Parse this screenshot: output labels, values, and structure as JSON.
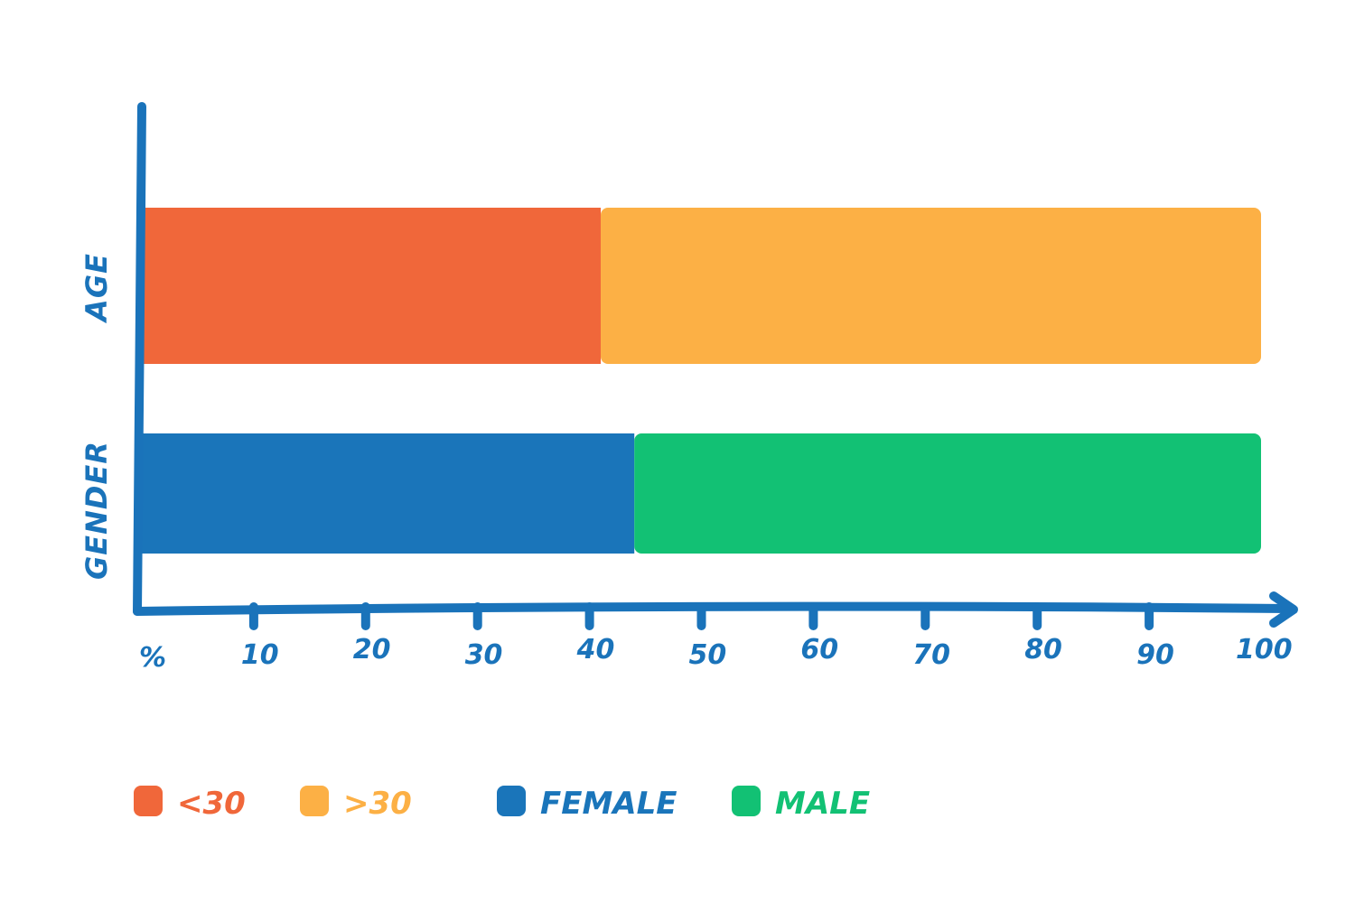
{
  "chart_data": {
    "type": "bar",
    "orientation": "horizontal",
    "stacked": true,
    "categories": [
      "AGE",
      "GENDER"
    ],
    "series": [
      {
        "name": "<30",
        "category": "AGE",
        "value": 41,
        "color": "#f0673a"
      },
      {
        "name": ">30",
        "category": "AGE",
        "value": 59,
        "color": "#fcb045"
      },
      {
        "name": "FEMALE",
        "category": "GENDER",
        "value": 44,
        "color": "#1a75ba"
      },
      {
        "name": "MALE",
        "category": "GENDER",
        "value": 56,
        "color": "#12c174"
      }
    ],
    "x_unit_label": "%",
    "x_ticks": [
      10,
      20,
      30,
      40,
      50,
      60,
      70,
      80,
      90,
      100
    ],
    "xlim": [
      0,
      100
    ],
    "grid": false,
    "legend_position": "bottom-left",
    "axis_color": "#1a73ba"
  }
}
